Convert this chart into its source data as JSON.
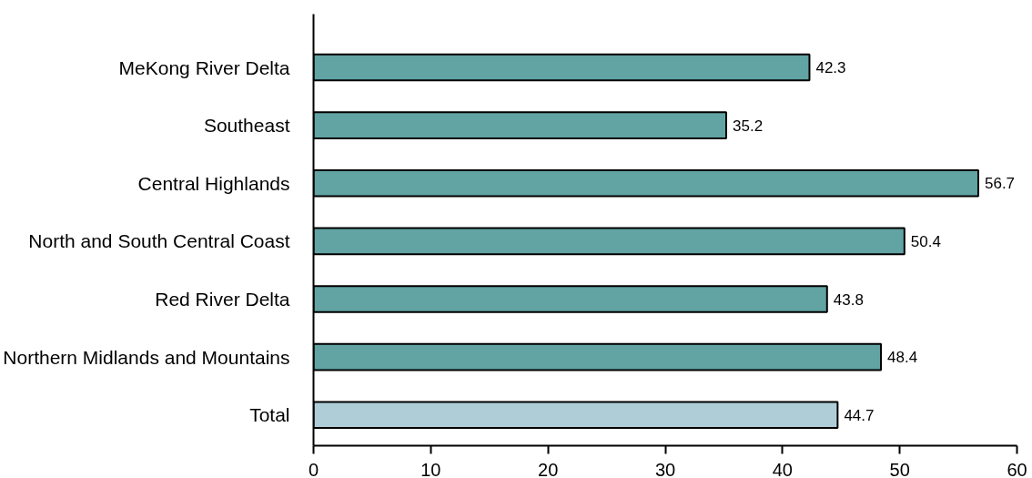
{
  "chart_data": {
    "type": "bar",
    "orientation": "horizontal",
    "categories": [
      "MeKong River Delta",
      "Southeast",
      "Central Highlands",
      "North and South Central Coast",
      "Red River Delta",
      "Northern Midlands and Mountains",
      "Total"
    ],
    "values": [
      42.3,
      35.2,
      56.7,
      50.4,
      43.8,
      48.4,
      44.7
    ],
    "colors": [
      "#62a3a3",
      "#62a3a3",
      "#62a3a3",
      "#62a3a3",
      "#62a3a3",
      "#62a3a3",
      "#afcdd6"
    ],
    "xlim": [
      0,
      60
    ],
    "xticks": [
      0,
      10,
      20,
      30,
      40,
      50,
      60
    ],
    "data_labels": true
  }
}
